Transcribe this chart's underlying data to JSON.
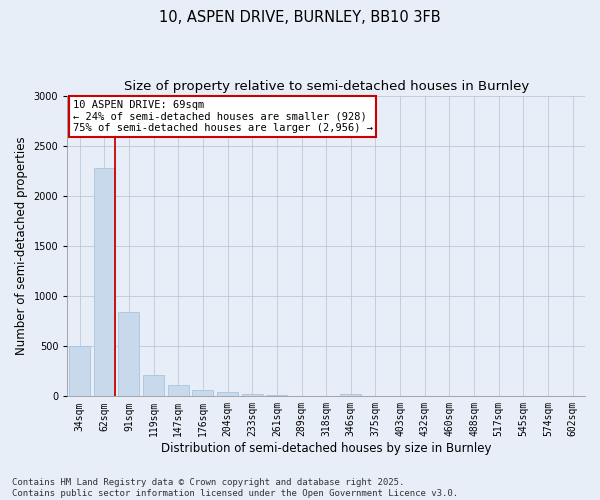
{
  "title1": "10, ASPEN DRIVE, BURNLEY, BB10 3FB",
  "title2": "Size of property relative to semi-detached houses in Burnley",
  "xlabel": "Distribution of semi-detached houses by size in Burnley",
  "ylabel": "Number of semi-detached properties",
  "categories": [
    "34sqm",
    "62sqm",
    "91sqm",
    "119sqm",
    "147sqm",
    "176sqm",
    "204sqm",
    "233sqm",
    "261sqm",
    "289sqm",
    "318sqm",
    "346sqm",
    "375sqm",
    "403sqm",
    "432sqm",
    "460sqm",
    "488sqm",
    "517sqm",
    "545sqm",
    "574sqm",
    "602sqm"
  ],
  "values": [
    500,
    2280,
    840,
    210,
    110,
    60,
    40,
    25,
    15,
    8,
    0,
    20,
    0,
    0,
    0,
    0,
    0,
    0,
    0,
    0,
    0
  ],
  "bar_color": "#c9d9ec",
  "bar_edge_color": "#a8c4dd",
  "ylim": [
    0,
    3000
  ],
  "yticks": [
    0,
    500,
    1000,
    1500,
    2000,
    2500,
    3000
  ],
  "property_label": "10 ASPEN DRIVE: 69sqm",
  "annotation_line1": "← 24% of semi-detached houses are smaller (928)",
  "annotation_line2": "75% of semi-detached houses are larger (2,956) →",
  "red_line_color": "#cc0000",
  "annotation_box_color": "#ffffff",
  "annotation_box_edge": "#cc0000",
  "footer1": "Contains HM Land Registry data © Crown copyright and database right 2025.",
  "footer2": "Contains public sector information licensed under the Open Government Licence v3.0.",
  "bg_color": "#e8eef7",
  "plot_bg_color": "#e8eef7",
  "title_fontsize": 10.5,
  "subtitle_fontsize": 9.5,
  "tick_fontsize": 7,
  "ylabel_fontsize": 8.5,
  "xlabel_fontsize": 8.5,
  "footer_fontsize": 6.5,
  "annotation_fontsize": 7.5
}
